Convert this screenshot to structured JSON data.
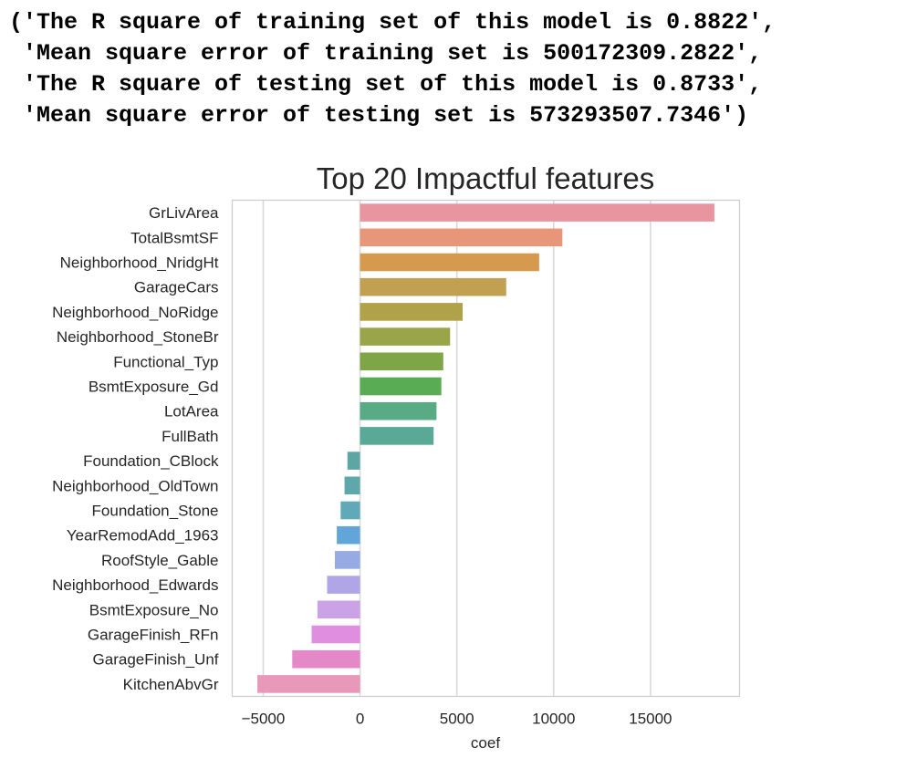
{
  "output_lines": [
    "('The R square of training set of this model is 0.8822',",
    " 'Mean square error of training set is 500172309.2822',",
    " 'The R square of testing set of this model is 0.8733',",
    " 'Mean square error of testing set is 573293507.7346')"
  ],
  "chart_data": {
    "type": "bar",
    "orientation": "horizontal",
    "title": "Top 20 Impactful features",
    "xlabel": "coef",
    "ylabel": "",
    "xlim": [
      -6600,
      19600
    ],
    "xticks": [
      -5000,
      0,
      5000,
      10000,
      15000
    ],
    "xtick_labels": [
      "−5000",
      "0",
      "5000",
      "10000",
      "15000"
    ],
    "grid": "vertical",
    "categories": [
      "GrLivArea",
      "TotalBsmtSF",
      "Neighborhood_NridgHt",
      "GarageCars",
      "Neighborhood_NoRidge",
      "Neighborhood_StoneBr",
      "Functional_Typ",
      "BsmtExposure_Gd",
      "LotArea",
      "FullBath",
      "Foundation_CBlock",
      "Neighborhood_OldTown",
      "Foundation_Stone",
      "YearRemodAdd_1963",
      "RoofStyle_Gable",
      "Neighborhood_Edwards",
      "BsmtExposure_No",
      "GarageFinish_RFn",
      "GarageFinish_Unf",
      "KitchenAbvGr"
    ],
    "values": [
      18300,
      10450,
      9250,
      7550,
      5300,
      4650,
      4300,
      4200,
      3950,
      3800,
      -650,
      -800,
      -1000,
      -1200,
      -1300,
      -1700,
      -2200,
      -2500,
      -3500,
      -5300
    ],
    "colors": [
      "#e8959f",
      "#e8967a",
      "#d69a4e",
      "#c1a052",
      "#b0a249",
      "#9aa448",
      "#7ea647",
      "#5aac54",
      "#59ab86",
      "#5aa996",
      "#5da6a3",
      "#5ea7aa",
      "#5fa9b8",
      "#62a5d8",
      "#98aae3",
      "#b0a5e6",
      "#cba2e6",
      "#df8ee0",
      "#e488c8",
      "#e898b8"
    ]
  }
}
